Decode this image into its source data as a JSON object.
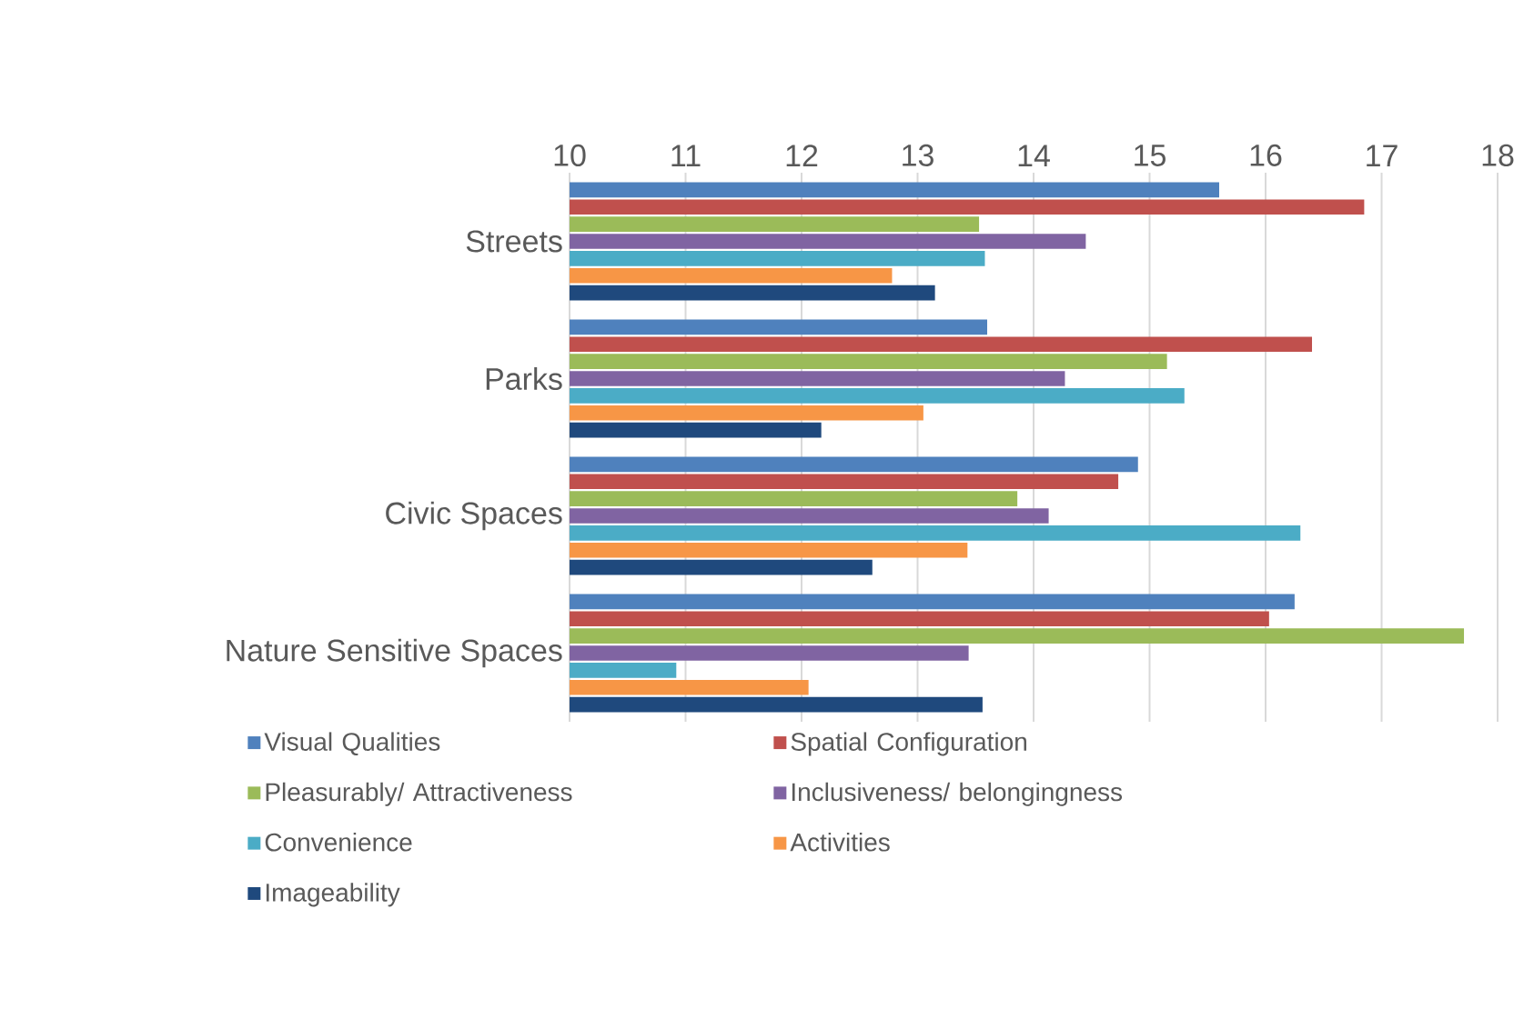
{
  "chart_data": {
    "type": "bar",
    "orientation": "horizontal",
    "categories": [
      "Streets",
      "Parks",
      "Civic Spaces",
      "Nature Sensitive Spaces"
    ],
    "series": [
      {
        "name": "Visual Qualities",
        "color": "#4f81bd",
        "values": [
          15.6,
          13.6,
          14.9,
          16.25
        ]
      },
      {
        "name": "Spatial Configuration",
        "color": "#c0504d",
        "values": [
          16.85,
          16.4,
          14.73,
          16.03
        ]
      },
      {
        "name": "Pleasurably/ Attractiveness",
        "color": "#9bbb59",
        "values": [
          13.53,
          15.15,
          13.86,
          17.71
        ]
      },
      {
        "name": "Inclusiveness/ belongingness",
        "color": "#8064a2",
        "values": [
          14.45,
          14.27,
          14.13,
          13.44
        ]
      },
      {
        "name": "Convenience",
        "color": "#4bacc6",
        "values": [
          13.58,
          15.3,
          16.3,
          10.92
        ]
      },
      {
        "name": "Activities",
        "color": "#f79646",
        "values": [
          12.78,
          13.05,
          13.43,
          12.06
        ]
      },
      {
        "name": "Imageability",
        "color": "#1f497d",
        "values": [
          13.15,
          12.17,
          12.61,
          13.56
        ]
      }
    ],
    "xlim": [
      10,
      18
    ],
    "xticks": [
      10,
      11,
      12,
      13,
      14,
      15,
      16,
      17,
      18
    ],
    "grid": "x",
    "legend": "bottom"
  }
}
